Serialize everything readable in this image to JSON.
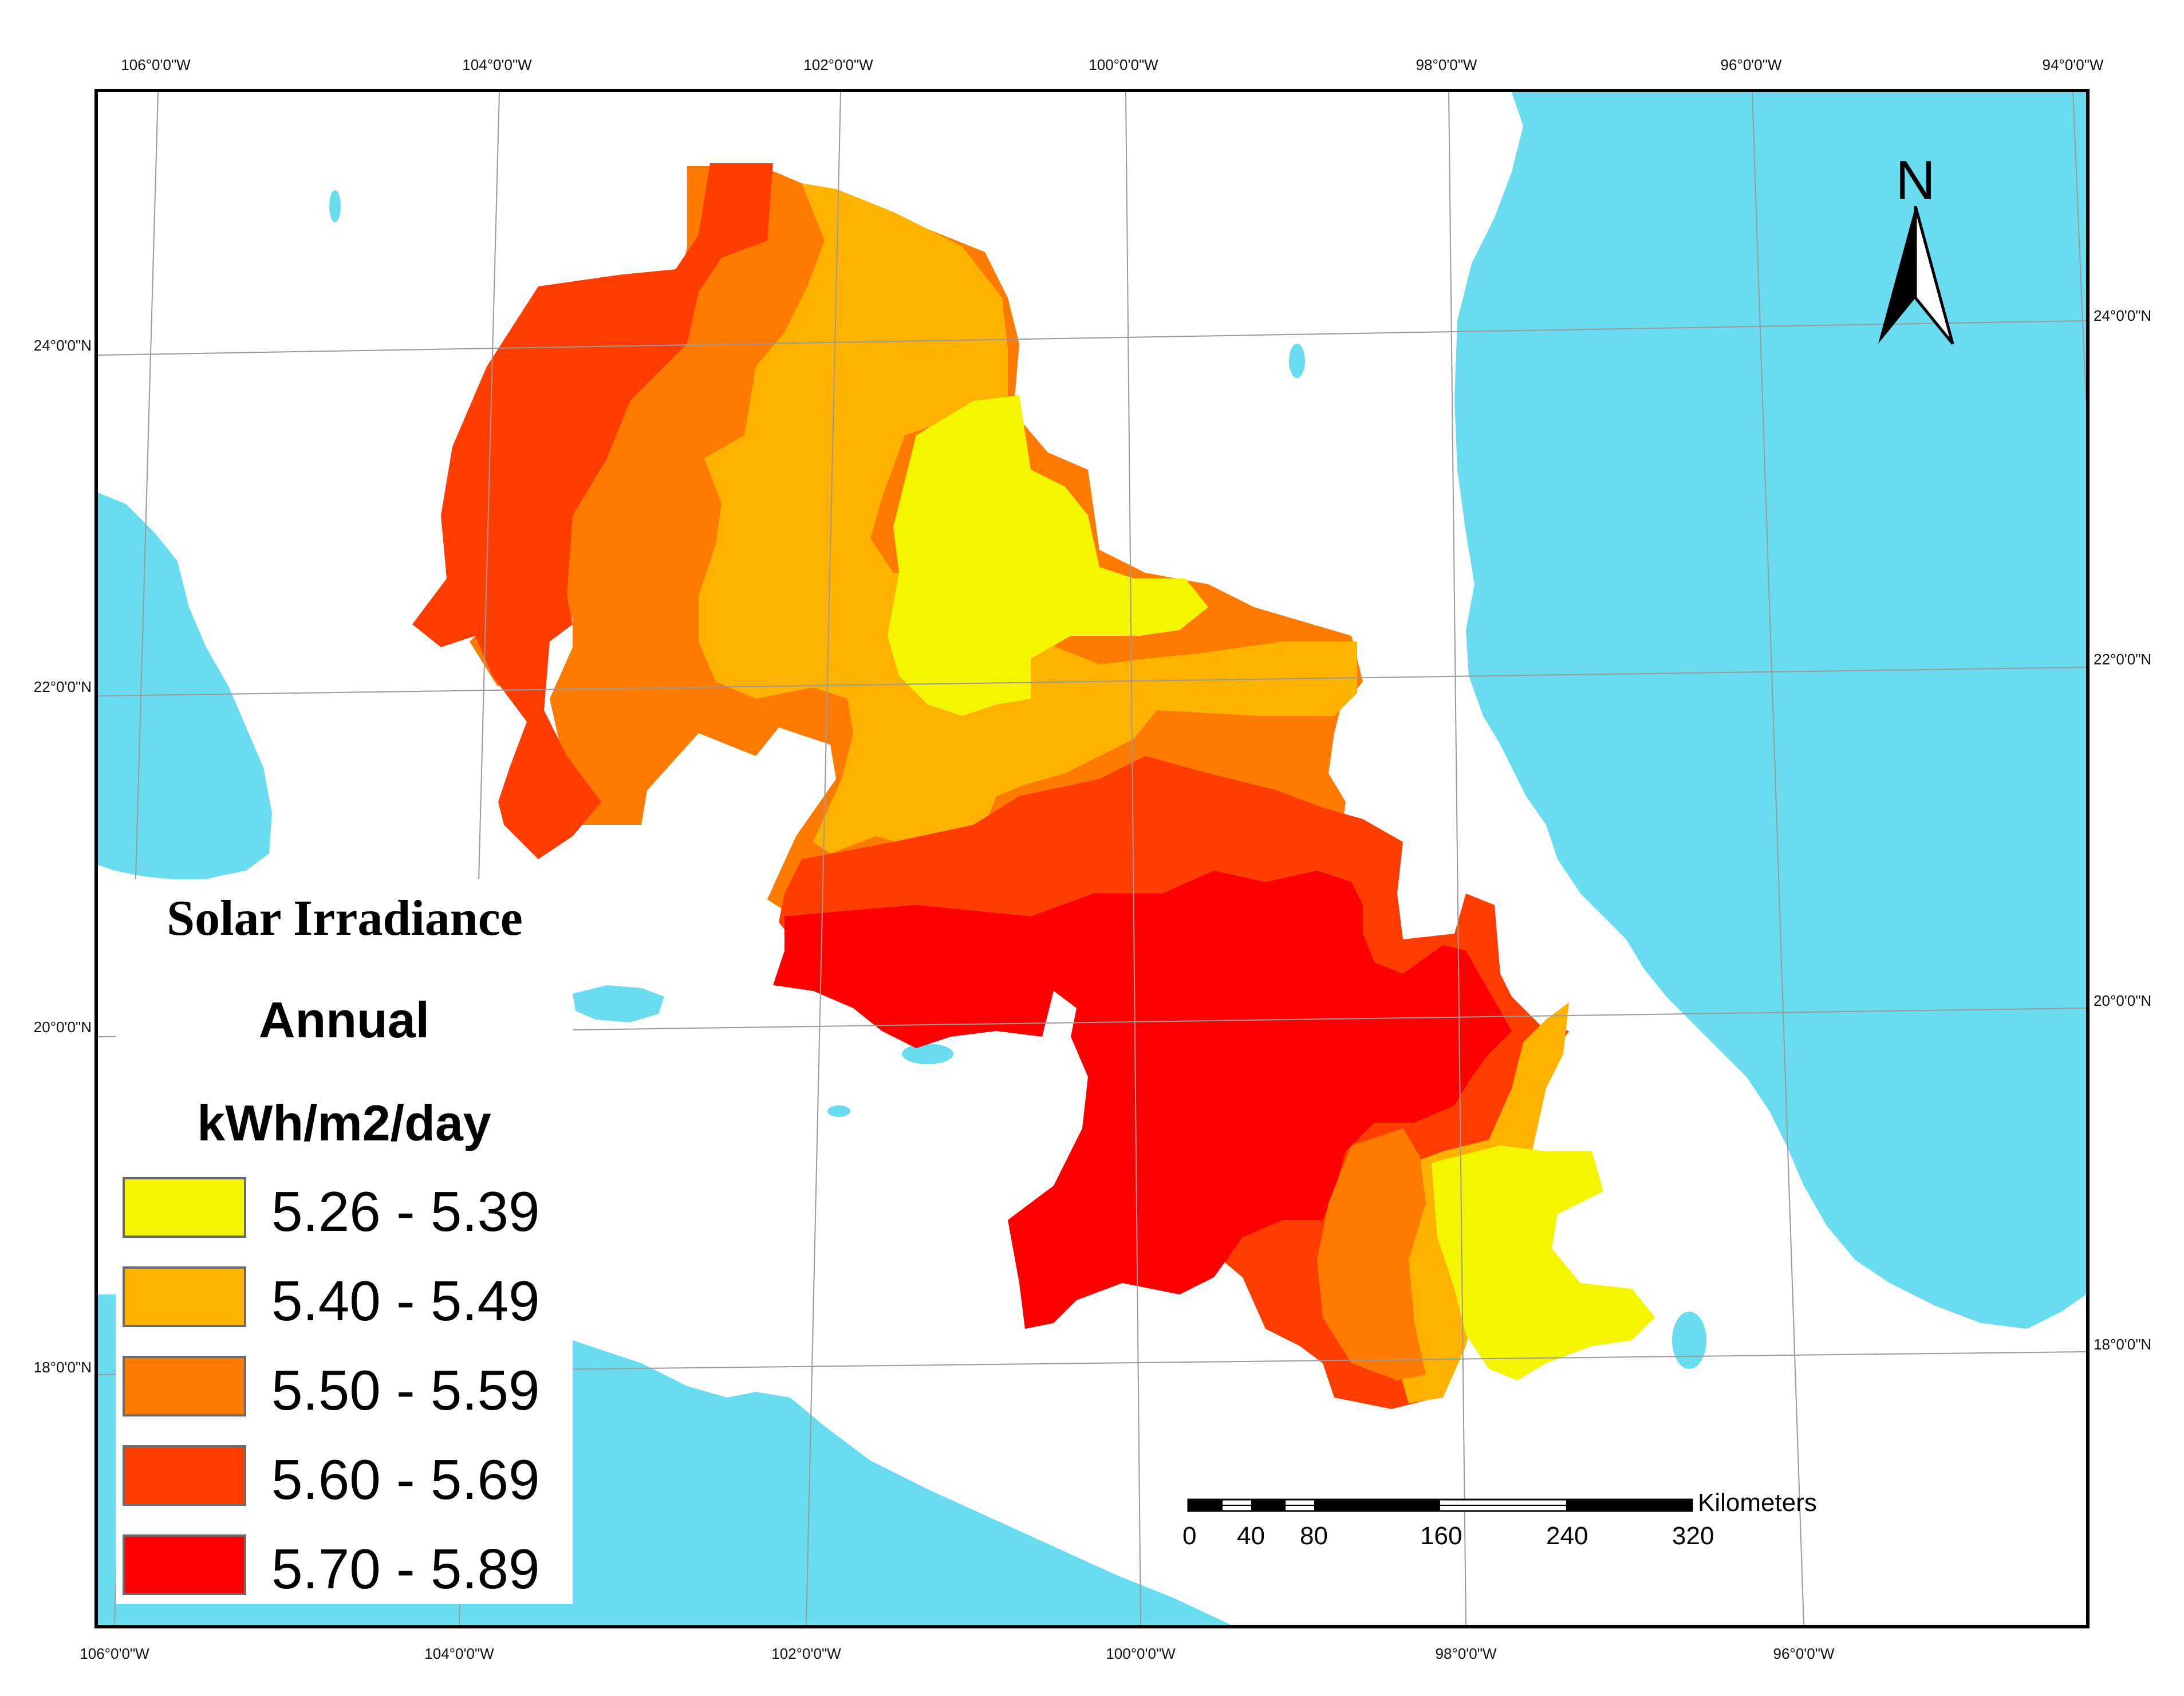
{
  "colors": {
    "water": "#6adcf0",
    "land": "#ffffff",
    "class_1": "#f5f500",
    "class_2": "#ffb300",
    "class_3": "#ff7a00",
    "class_4": "#ff3d00",
    "class_5": "#ff0000"
  },
  "graticule": {
    "top_lon_labels": [
      "106°0'0\"W",
      "104°0'0\"W",
      "102°0'0\"W",
      "100°0'0\"W",
      "98°0'0\"W",
      "96°0'0\"W",
      "94°0'0\"W"
    ],
    "bottom_lon_labels": [
      "106°0'0\"W",
      "104°0'0\"W",
      "102°0'0\"W",
      "100°0'0\"W",
      "98°0'0\"W",
      "96°0'0\"W"
    ],
    "left_lat_labels": [
      "24°0'0\"N",
      "22°0'0\"N",
      "20°0'0\"N",
      "18°0'0\"N"
    ],
    "right_lat_labels": [
      "24°0'0\"N",
      "22°0'0\"N",
      "20°0'0\"N",
      "18°0'0\"N"
    ]
  },
  "legend": {
    "title": "Solar Irradiance",
    "period": "Annual",
    "unit": "kWh/m2/day",
    "classes": [
      {
        "range": "5.26 - 5.39",
        "color": "#f5f500"
      },
      {
        "range": "5.40 - 5.49",
        "color": "#ffb300"
      },
      {
        "range": "5.50 - 5.59",
        "color": "#ff7a00"
      },
      {
        "range": "5.60 - 5.69",
        "color": "#ff3d00"
      },
      {
        "range": "5.70 - 5.89",
        "color": "#ff0000"
      }
    ]
  },
  "north_arrow": {
    "label": "N"
  },
  "scale_bar": {
    "unit": "Kilometers",
    "ticks": [
      "0",
      "40",
      "80",
      "160",
      "240",
      "320"
    ]
  }
}
